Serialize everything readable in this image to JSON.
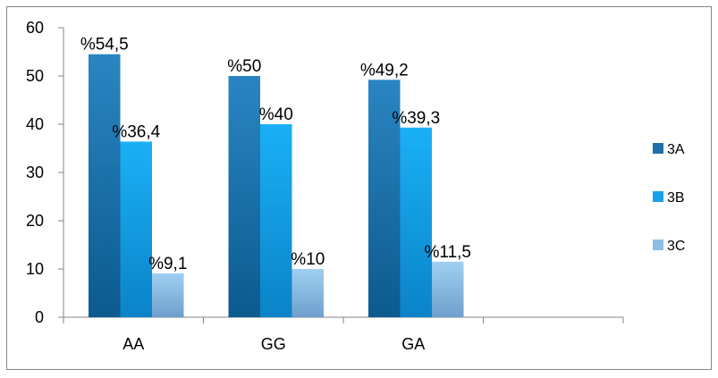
{
  "chart_data": {
    "type": "bar",
    "categories": [
      "AA",
      "GG",
      "GA"
    ],
    "series": [
      {
        "name": "3A",
        "values": [
          54.5,
          50,
          49.2
        ],
        "labels": [
          "%54,5",
          "%50",
          "%49,2"
        ],
        "color": "#1f6fa8"
      },
      {
        "name": "3B",
        "values": [
          36.4,
          40,
          39.3
        ],
        "labels": [
          "%36,4",
          "%40",
          "%39,3"
        ],
        "color": "#1aa0e8"
      },
      {
        "name": "3C",
        "values": [
          9.1,
          10,
          11.5
        ],
        "labels": [
          "%9,1",
          "%10",
          "%11,5"
        ],
        "color": "#8bbfe6"
      }
    ],
    "ylim": [
      0,
      60
    ],
    "yticks": [
      "0",
      "10",
      "20",
      "30",
      "40",
      "50",
      "60"
    ],
    "grid": false,
    "legend": "right",
    "extra_empty_category_slot": true
  }
}
